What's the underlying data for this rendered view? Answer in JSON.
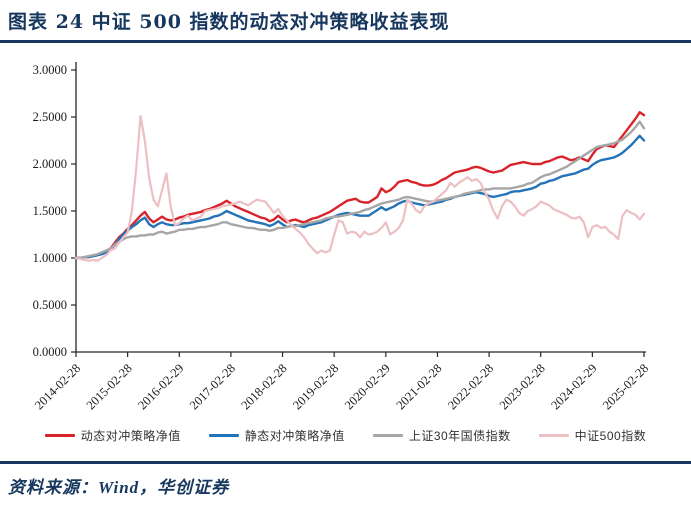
{
  "header": {
    "title": "图表 24  中证 500 指数的动态对冲策略收益表现"
  },
  "source_note": {
    "text": "资料来源：Wind，华创证券"
  },
  "colors": {
    "accent_navy": "#17375E",
    "axis": "#262626",
    "legend_text": "#333333"
  },
  "chart_data": {
    "type": "line",
    "title": "",
    "xlabel": "",
    "ylabel": "",
    "frequency": "monthly",
    "grid": false,
    "legend_position": "bottom",
    "y_axis": {
      "min": 0,
      "max": 3,
      "tick_labels": [
        "3.0000",
        "2.5000",
        "2.0000",
        "1.5000",
        "1.0000",
        "0.5000",
        "0.0000"
      ]
    },
    "x_axis": {
      "tick_labels": [
        "2014-02-28",
        "2015-02-28",
        "2016-02-29",
        "2017-02-28",
        "2018-02-28",
        "2019-02-28",
        "2020-02-29",
        "2021-02-28",
        "2022-02-28",
        "2023-02-28",
        "2024-02-29",
        "2025-02-28"
      ]
    },
    "series": [
      {
        "name": "动态对冲策略净值",
        "color": "#D9232B",
        "width": 2.4,
        "values": [
          1.0,
          1.0,
          1.01,
          1.01,
          1.02,
          1.03,
          1.05,
          1.07,
          1.1,
          1.16,
          1.22,
          1.26,
          1.31,
          1.35,
          1.4,
          1.45,
          1.49,
          1.42,
          1.38,
          1.41,
          1.44,
          1.41,
          1.4,
          1.41,
          1.43,
          1.44,
          1.46,
          1.47,
          1.48,
          1.49,
          1.51,
          1.52,
          1.54,
          1.56,
          1.58,
          1.61,
          1.58,
          1.55,
          1.53,
          1.51,
          1.49,
          1.47,
          1.45,
          1.43,
          1.42,
          1.39,
          1.41,
          1.45,
          1.41,
          1.38,
          1.4,
          1.41,
          1.39,
          1.38,
          1.4,
          1.42,
          1.43,
          1.45,
          1.47,
          1.49,
          1.52,
          1.55,
          1.58,
          1.61,
          1.62,
          1.63,
          1.6,
          1.59,
          1.59,
          1.62,
          1.65,
          1.74,
          1.7,
          1.72,
          1.76,
          1.81,
          1.82,
          1.83,
          1.81,
          1.8,
          1.78,
          1.77,
          1.77,
          1.78,
          1.8,
          1.83,
          1.85,
          1.88,
          1.91,
          1.92,
          1.93,
          1.94,
          1.96,
          1.97,
          1.96,
          1.94,
          1.92,
          1.91,
          1.92,
          1.93,
          1.96,
          1.99,
          2.0,
          2.01,
          2.02,
          2.01,
          2.0,
          2.0,
          2.0,
          2.02,
          2.03,
          2.05,
          2.07,
          2.08,
          2.06,
          2.04,
          2.05,
          2.07,
          2.05,
          2.03,
          2.1,
          2.16,
          2.18,
          2.2,
          2.19,
          2.18,
          2.24,
          2.3,
          2.36,
          2.42,
          2.48,
          2.55,
          2.52
        ]
      },
      {
        "name": "静态对冲策略净值",
        "color": "#2273B8",
        "width": 2.4,
        "values": [
          1.0,
          1.0,
          1.01,
          1.01,
          1.02,
          1.03,
          1.04,
          1.06,
          1.09,
          1.14,
          1.2,
          1.25,
          1.29,
          1.33,
          1.36,
          1.4,
          1.43,
          1.36,
          1.33,
          1.36,
          1.38,
          1.36,
          1.35,
          1.35,
          1.36,
          1.37,
          1.37,
          1.38,
          1.39,
          1.4,
          1.41,
          1.42,
          1.44,
          1.45,
          1.47,
          1.5,
          1.48,
          1.46,
          1.44,
          1.42,
          1.4,
          1.39,
          1.38,
          1.37,
          1.36,
          1.34,
          1.36,
          1.39,
          1.36,
          1.33,
          1.34,
          1.35,
          1.34,
          1.33,
          1.35,
          1.36,
          1.37,
          1.38,
          1.4,
          1.42,
          1.44,
          1.46,
          1.47,
          1.48,
          1.47,
          1.46,
          1.45,
          1.45,
          1.45,
          1.48,
          1.51,
          1.54,
          1.51,
          1.53,
          1.55,
          1.58,
          1.6,
          1.61,
          1.59,
          1.58,
          1.57,
          1.56,
          1.57,
          1.58,
          1.59,
          1.6,
          1.62,
          1.63,
          1.65,
          1.66,
          1.67,
          1.68,
          1.69,
          1.7,
          1.69,
          1.68,
          1.66,
          1.65,
          1.66,
          1.67,
          1.68,
          1.7,
          1.71,
          1.71,
          1.72,
          1.73,
          1.74,
          1.76,
          1.79,
          1.8,
          1.82,
          1.83,
          1.85,
          1.87,
          1.88,
          1.89,
          1.9,
          1.92,
          1.94,
          1.95,
          1.99,
          2.02,
          2.04,
          2.05,
          2.06,
          2.07,
          2.09,
          2.12,
          2.16,
          2.2,
          2.25,
          2.3,
          2.25
        ]
      },
      {
        "name": "上证30年国债指数",
        "color": "#A6A6A6",
        "width": 2.4,
        "values": [
          1.0,
          1.0,
          1.01,
          1.02,
          1.03,
          1.04,
          1.06,
          1.08,
          1.1,
          1.14,
          1.17,
          1.2,
          1.22,
          1.23,
          1.23,
          1.24,
          1.24,
          1.25,
          1.25,
          1.27,
          1.28,
          1.26,
          1.27,
          1.28,
          1.3,
          1.3,
          1.31,
          1.31,
          1.32,
          1.33,
          1.33,
          1.34,
          1.35,
          1.36,
          1.38,
          1.38,
          1.36,
          1.35,
          1.34,
          1.33,
          1.32,
          1.32,
          1.31,
          1.3,
          1.3,
          1.29,
          1.3,
          1.32,
          1.32,
          1.33,
          1.34,
          1.34,
          1.35,
          1.36,
          1.37,
          1.38,
          1.39,
          1.4,
          1.42,
          1.43,
          1.44,
          1.44,
          1.45,
          1.46,
          1.47,
          1.48,
          1.49,
          1.51,
          1.52,
          1.54,
          1.56,
          1.58,
          1.59,
          1.6,
          1.61,
          1.62,
          1.64,
          1.65,
          1.64,
          1.63,
          1.62,
          1.61,
          1.6,
          1.6,
          1.61,
          1.62,
          1.63,
          1.64,
          1.65,
          1.66,
          1.68,
          1.69,
          1.7,
          1.71,
          1.72,
          1.73,
          1.73,
          1.74,
          1.74,
          1.74,
          1.74,
          1.74,
          1.75,
          1.76,
          1.77,
          1.79,
          1.8,
          1.83,
          1.86,
          1.88,
          1.89,
          1.91,
          1.93,
          1.95,
          1.97,
          2.0,
          2.03,
          2.06,
          2.09,
          2.12,
          2.15,
          2.18,
          2.19,
          2.2,
          2.21,
          2.22,
          2.24,
          2.26,
          2.3,
          2.34,
          2.39,
          2.45,
          2.38
        ]
      },
      {
        "name": "中证500指数",
        "color": "#ECBFC2",
        "width": 2.2,
        "values": [
          1.0,
          0.99,
          0.98,
          0.97,
          0.98,
          0.97,
          1.0,
          1.03,
          1.08,
          1.1,
          1.16,
          1.22,
          1.27,
          1.5,
          1.95,
          2.51,
          2.25,
          1.85,
          1.62,
          1.55,
          1.72,
          1.9,
          1.55,
          1.35,
          1.37,
          1.42,
          1.45,
          1.4,
          1.42,
          1.44,
          1.5,
          1.51,
          1.52,
          1.53,
          1.55,
          1.56,
          1.57,
          1.58,
          1.6,
          1.58,
          1.56,
          1.59,
          1.62,
          1.61,
          1.6,
          1.54,
          1.48,
          1.52,
          1.45,
          1.4,
          1.35,
          1.31,
          1.27,
          1.22,
          1.15,
          1.1,
          1.05,
          1.08,
          1.06,
          1.08,
          1.25,
          1.4,
          1.38,
          1.26,
          1.28,
          1.27,
          1.22,
          1.28,
          1.25,
          1.26,
          1.28,
          1.32,
          1.38,
          1.25,
          1.28,
          1.32,
          1.4,
          1.62,
          1.58,
          1.51,
          1.48,
          1.55,
          1.58,
          1.6,
          1.64,
          1.68,
          1.72,
          1.8,
          1.76,
          1.8,
          1.83,
          1.86,
          1.82,
          1.84,
          1.8,
          1.7,
          1.62,
          1.5,
          1.42,
          1.55,
          1.62,
          1.6,
          1.55,
          1.48,
          1.45,
          1.5,
          1.52,
          1.55,
          1.6,
          1.58,
          1.56,
          1.52,
          1.5,
          1.48,
          1.46,
          1.43,
          1.42,
          1.44,
          1.38,
          1.22,
          1.33,
          1.35,
          1.32,
          1.33,
          1.28,
          1.25,
          1.2,
          1.45,
          1.51,
          1.48,
          1.46,
          1.41,
          1.47
        ]
      }
    ]
  }
}
